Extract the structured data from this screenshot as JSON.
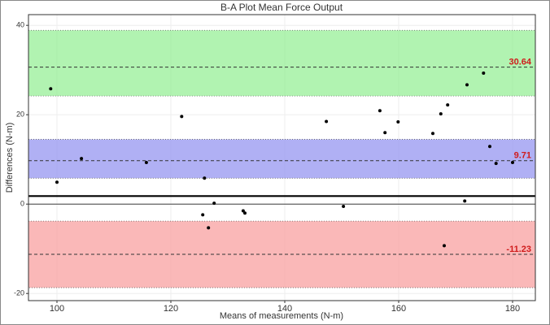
{
  "chart_data": {
    "type": "scatter",
    "title": "B-A Plot Mean Force Output",
    "x_label": "Means of measurements (N-m)",
    "y_label": "Differences (N-m)",
    "xlim": [
      95,
      184
    ],
    "ylim": [
      -21.6,
      42.4
    ],
    "xticks": [
      100,
      120,
      140,
      160,
      180
    ],
    "yticks": [
      -20,
      0,
      20,
      40
    ],
    "grid": true,
    "color": "#000000",
    "x": [
      98.9,
      100,
      104.3,
      115.7,
      121.9,
      125.9,
      125.6,
      126.6,
      127.6,
      132.7,
      133,
      147.3,
      150.3,
      156.7,
      157.6,
      159.9,
      166,
      167.4,
      168,
      168.6,
      171.6,
      172,
      174.9,
      176,
      177.1,
      180
    ],
    "values": [
      25.8,
      4.9,
      10.2,
      9.3,
      19.6,
      5.8,
      -2.4,
      -5.3,
      0.2,
      -1.5,
      -2.0,
      18.5,
      -0.5,
      20.9,
      16,
      18.4,
      15.8,
      20.2,
      -9.3,
      22.2,
      0.7,
      26.7,
      29.3,
      12.9,
      9.1,
      9.3
    ],
    "limits": [
      {
        "value": 30.64,
        "band": [
          24.2,
          38.9
        ],
        "color": "#90ee90"
      },
      {
        "value": 9.71,
        "band": [
          5.8,
          14.5
        ],
        "color": "#8f8fef"
      },
      {
        "value": -11.23,
        "band": [
          -18.7,
          -3.8
        ],
        "color": "#f89a9a"
      }
    ],
    "reference_line": 1.8
  }
}
